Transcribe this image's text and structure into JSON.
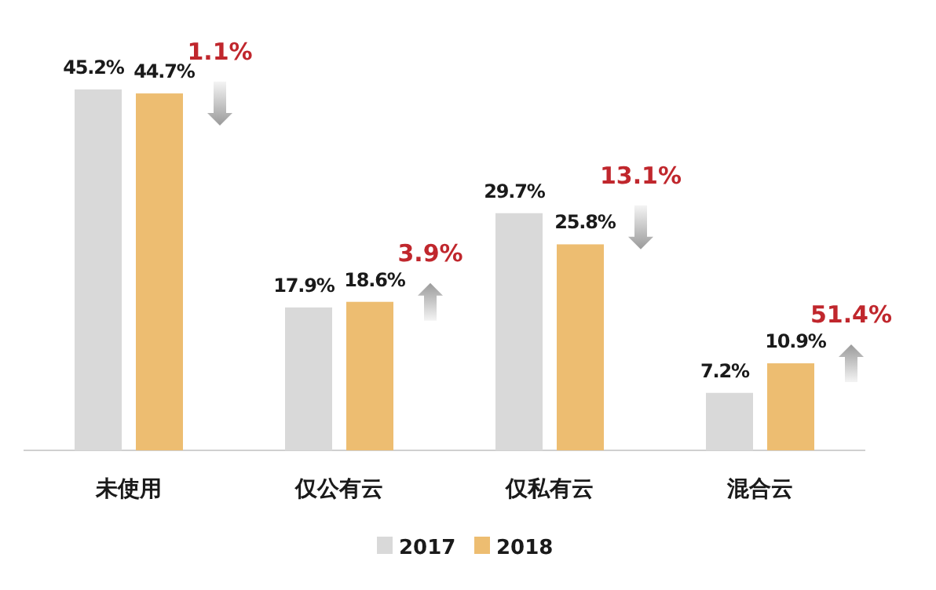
{
  "chart_data": {
    "type": "bar",
    "categories": [
      "未使用",
      "仅公有云",
      "仅私有云",
      "混合云"
    ],
    "series": [
      {
        "name": "2017",
        "color": "#d9d9d9",
        "values": [
          45.2,
          17.9,
          29.7,
          7.2
        ],
        "value_labels": [
          "45.2%",
          "17.9%",
          "29.7%",
          "7.2%"
        ]
      },
      {
        "name": "2018",
        "color": "#edbd71",
        "values": [
          44.7,
          18.6,
          25.8,
          10.9
        ],
        "value_labels": [
          "44.7%",
          "18.6%",
          "25.8%",
          "10.9%"
        ]
      }
    ],
    "legend": "bottom",
    "annotations": [
      "1.1%",
      "3.9%",
      "13.1%",
      "51.4%"
    ]
  }
}
